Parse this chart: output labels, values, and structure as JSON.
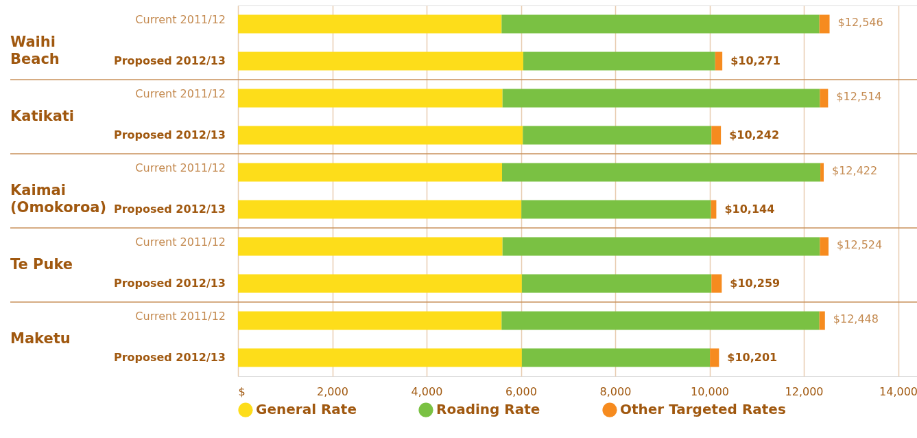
{
  "chart_data": {
    "type": "bar",
    "orientation": "horizontal",
    "stacked": true,
    "categories": [
      "Current 2011/12",
      "Proposed 2012/13",
      "Current 2011/12",
      "Proposed 2012/13",
      "Current 2011/12",
      "Proposed 2012/13",
      "Current 2011/12",
      "Proposed 2012/13",
      "Current 2011/12",
      "Proposed 2012/13"
    ],
    "series": [
      {
        "name": "General Rate",
        "color": "#fddd1a",
        "values": [
          5590,
          6050,
          5610,
          6040,
          5600,
          6010,
          5610,
          6020,
          5590,
          6020
        ]
      },
      {
        "name": "Roading Rate",
        "color": "#7ac143",
        "values": [
          6740,
          4070,
          6730,
          4000,
          6750,
          4020,
          6730,
          4020,
          6740,
          3990
        ]
      },
      {
        "name": "Other Targeted Rates",
        "color": "#f68b1f",
        "values": [
          216,
          151,
          174,
          202,
          72,
          114,
          184,
          219,
          118,
          191
        ]
      }
    ],
    "totals": [
      "$12,546",
      "$10,271",
      "$12,514",
      "$10,242",
      "$12,422",
      "$10,144",
      "$12,524",
      "$10,259",
      "$12,448",
      "$10,201"
    ],
    "annotations": [
      "Waihi\nBeach",
      "Katikati",
      "Kaimai\n(Omokoroa)",
      "Te Puke",
      "Maketu"
    ],
    "xlim": [
      0,
      14400
    ],
    "xticks": [
      {
        "value": 0,
        "label": "$"
      },
      {
        "value": 2000,
        "label": "2,000"
      },
      {
        "value": 4000,
        "label": "4,000"
      },
      {
        "value": 6000,
        "label": "6,000"
      },
      {
        "value": 8000,
        "label": "8,000"
      },
      {
        "value": 10000,
        "label": "10,000"
      },
      {
        "value": 12000,
        "label": "12,000"
      },
      {
        "value": 14000,
        "label": "14,000"
      }
    ],
    "grid": "x",
    "legend": "bottom"
  }
}
